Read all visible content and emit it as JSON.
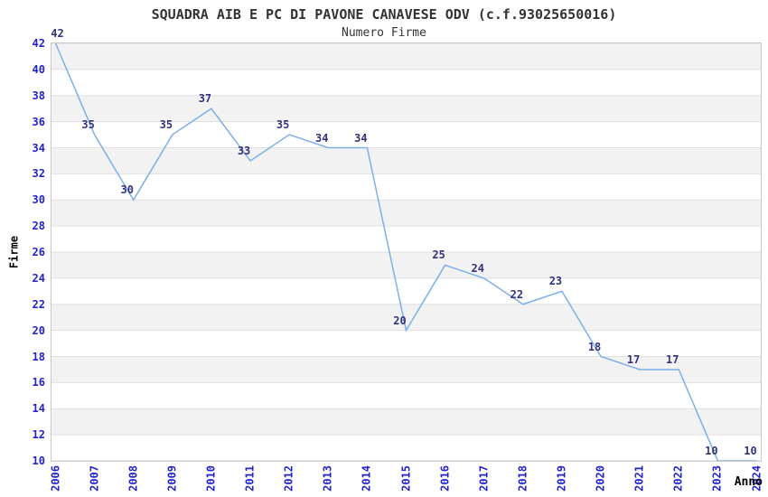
{
  "chart_data": {
    "type": "line",
    "title": "SQUADRA AIB E PC DI PAVONE CANAVESE ODV (c.f.93025650016)",
    "subtitle": "Numero Firme",
    "xlabel": "Anno",
    "ylabel": "Firme",
    "x": [
      2006,
      2007,
      2008,
      2009,
      2010,
      2011,
      2012,
      2013,
      2014,
      2015,
      2016,
      2017,
      2018,
      2019,
      2020,
      2021,
      2022,
      2023,
      2024
    ],
    "values": [
      42,
      35,
      30,
      35,
      37,
      33,
      35,
      34,
      34,
      20,
      25,
      24,
      22,
      23,
      18,
      17,
      17,
      10,
      10
    ],
    "ylim": [
      10,
      42
    ],
    "ytick_step": 2,
    "grid": "horizontal",
    "background_bands": "alternating",
    "legend": "none",
    "data_labels_shown": true,
    "colors": {
      "line": "#7dafe8",
      "tick_label": "#2323cc",
      "data_label": "#333380",
      "title": "#333333",
      "band": "#f2f2f2",
      "gridline": "#e0e0e0",
      "plot_border": "#c8c8c8",
      "background": "#ffffff"
    }
  }
}
